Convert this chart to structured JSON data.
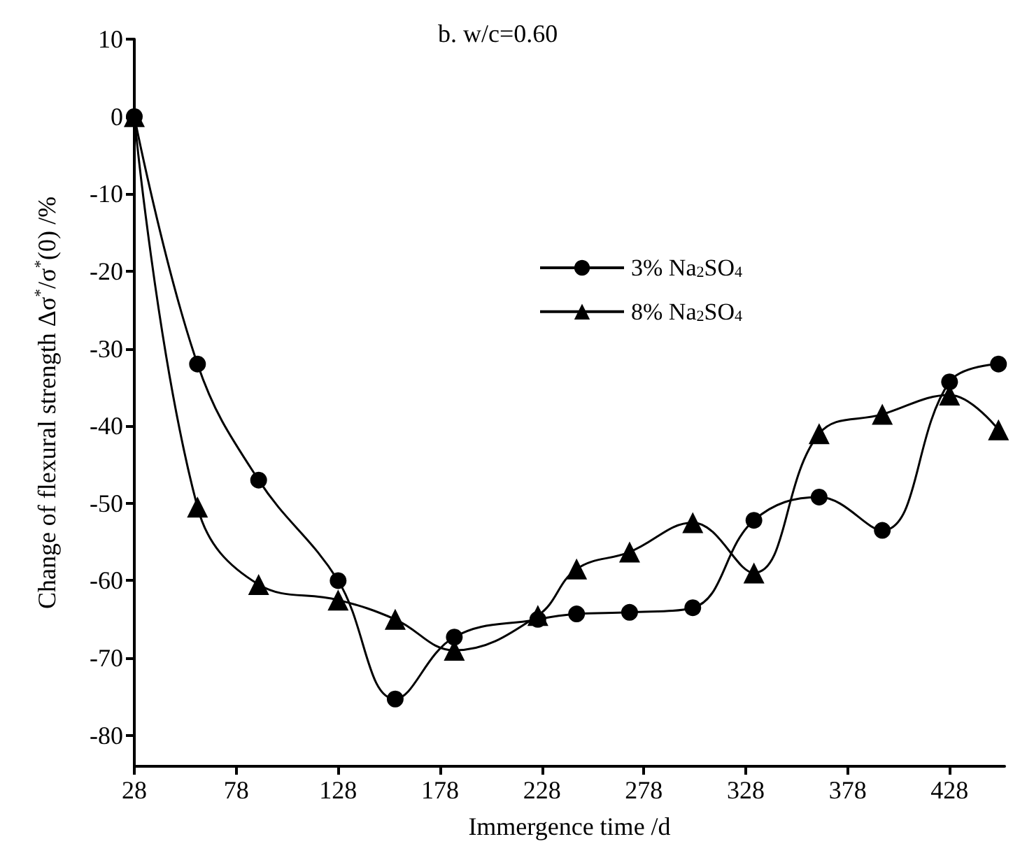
{
  "chart_data": {
    "type": "line",
    "title": "b. w/c=0.60",
    "xlabel": "Immergence time /d",
    "ylabel": "Change of flexural strength Δσ$^{*}$/σ$^{*}$(0) /%",
    "x": [
      28,
      59,
      89,
      128,
      156,
      185,
      226,
      245,
      271,
      302,
      332,
      364,
      395,
      428,
      452
    ],
    "series": [
      {
        "name": "3% Na$_{2}$SO$_{4}$",
        "color": "#000000",
        "marker": "circle",
        "values": [
          0,
          -32,
          -47,
          -60,
          -75.3,
          -67.3,
          -65,
          -64.3,
          -64.1,
          -63.5,
          -52.2,
          -49.2,
          -53.5,
          -34.3,
          -32
        ]
      },
      {
        "name": "8% Na$_{2}$SO$_{4}$",
        "color": "#000000",
        "marker": "triangle",
        "values": [
          0,
          -50.5,
          -60.5,
          -62.5,
          -65,
          -69,
          -64.5,
          -58.5,
          -56.3,
          -52.5,
          -59,
          -41,
          -38.5,
          -36,
          -40.5
        ]
      }
    ],
    "xlim": [
      28,
      455
    ],
    "xticks": [
      28,
      78,
      128,
      178,
      228,
      278,
      328,
      378,
      428
    ],
    "ylim": [
      -84,
      10
    ],
    "yticks": [
      -80,
      -70,
      -60,
      -50,
      -40,
      -30,
      -20,
      -10,
      0,
      10
    ],
    "grid": false,
    "legend": "right",
    "line_style": "solid"
  }
}
